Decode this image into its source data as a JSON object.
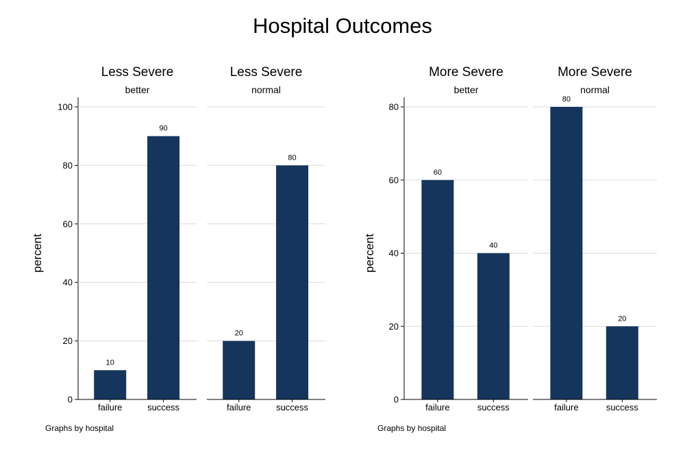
{
  "title": "Hospital Outcomes",
  "colors": {
    "bar": "#15355c",
    "grid": "#d9d9d9",
    "axis": "#000000"
  },
  "chart_data": [
    {
      "type": "bar",
      "ylabel": "percent",
      "ylim": [
        0,
        100
      ],
      "yticks": [
        0,
        20,
        40,
        60,
        80,
        100
      ],
      "note": "Graphs by hospital",
      "panels": [
        {
          "title": "Less Severe",
          "subtitle": "better",
          "categories": [
            "failure",
            "success"
          ],
          "values": [
            10,
            90
          ]
        },
        {
          "title": "Less Severe",
          "subtitle": "normal",
          "categories": [
            "failure",
            "success"
          ],
          "values": [
            20,
            80
          ]
        }
      ]
    },
    {
      "type": "bar",
      "ylabel": "percent",
      "ylim": [
        0,
        80
      ],
      "yticks": [
        0,
        20,
        40,
        60,
        80
      ],
      "note": "Graphs by hospital",
      "panels": [
        {
          "title": "More Severe",
          "subtitle": "better",
          "categories": [
            "failure",
            "success"
          ],
          "values": [
            60,
            40
          ]
        },
        {
          "title": "More Severe",
          "subtitle": "normal",
          "categories": [
            "failure",
            "success"
          ],
          "values": [
            80,
            20
          ]
        }
      ]
    }
  ]
}
